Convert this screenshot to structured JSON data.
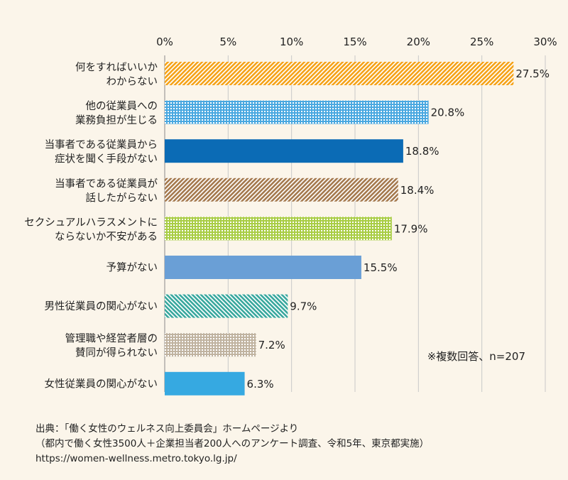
{
  "chart_data": {
    "type": "bar",
    "orientation": "horizontal",
    "categories": [
      [
        "何をすればいいか",
        "わからない"
      ],
      [
        "他の従業員への",
        "業務負担が生じる"
      ],
      [
        "当事者である従業員から",
        "症状を聞く手段がない"
      ],
      [
        "当事者である従業員が",
        "話したがらない"
      ],
      [
        "セクシュアルハラスメントに",
        "ならないか不安がある"
      ],
      [
        "予算がない"
      ],
      [
        "男性従業員の関心がない"
      ],
      [
        "管理職や経営者層の",
        "賛同が得られない"
      ],
      [
        "女性従業員の関心がない"
      ]
    ],
    "values": [
      27.5,
      20.8,
      18.8,
      18.4,
      17.9,
      15.5,
      9.7,
      7.2,
      6.3
    ],
    "value_labels": [
      "27.5%",
      "20.8%",
      "18.8%",
      "18.4%",
      "17.9%",
      "15.5%",
      "9.7%",
      "7.2%",
      "6.3%"
    ],
    "bar_styles": [
      {
        "pattern": "diag-right",
        "color": "#f5a31a"
      },
      {
        "pattern": "grid",
        "color": "#4aa8e0"
      },
      {
        "pattern": "solid",
        "color": "#0b6bb5"
      },
      {
        "pattern": "diag-right",
        "color": "#a57a4f"
      },
      {
        "pattern": "grid",
        "color": "#a9cd45"
      },
      {
        "pattern": "solid",
        "color": "#6a9fd6"
      },
      {
        "pattern": "diag-left",
        "color": "#3aa89e"
      },
      {
        "pattern": "grid",
        "color": "#c0b3a0"
      },
      {
        "pattern": "solid",
        "color": "#36a9e1"
      }
    ],
    "x_ticks": [
      "0%",
      "5%",
      "10%",
      "15%",
      "20%",
      "25%",
      "30%"
    ],
    "x_tick_values": [
      0,
      5,
      10,
      15,
      20,
      25,
      30
    ],
    "xlim": [
      0,
      30
    ],
    "gridlines": true,
    "note": "※複数回答、n=207"
  },
  "source": {
    "line1": "出典：「働く女性のウェルネス向上委員会」ホームページより",
    "line2": "（都内で働く女性3500人＋企業担当者200人へのアンケート調査、令和5年、東京都実施）",
    "line3": "https://women-wellness.metro.tokyo.lg.jp/"
  },
  "colors": {
    "background": "#fbf5ea",
    "gridline": "#c8c8c8",
    "text": "#222222"
  }
}
